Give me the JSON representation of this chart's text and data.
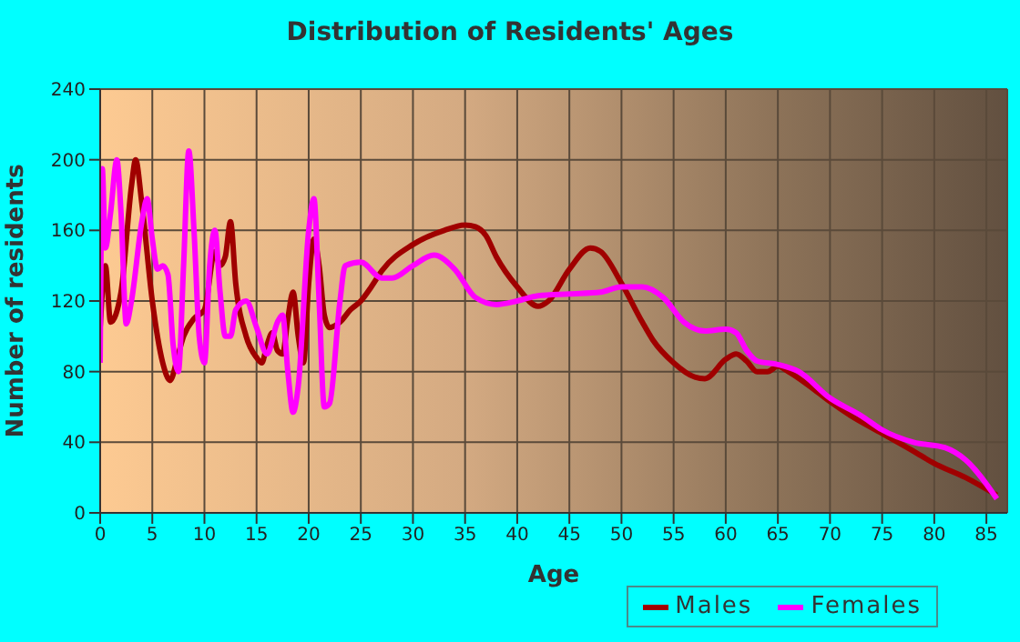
{
  "chart_data": {
    "type": "line",
    "title": "Distribution of Residents' Ages",
    "xlabel": "Age",
    "ylabel": "Number of residents",
    "xlim": [
      0,
      87
    ],
    "xticks": [
      0,
      5,
      10,
      15,
      20,
      25,
      30,
      35,
      40,
      45,
      50,
      55,
      60,
      65,
      70,
      75,
      80,
      85
    ],
    "ylim": [
      0,
      240
    ],
    "yticks": [
      0,
      40,
      80,
      120,
      160,
      200,
      240
    ],
    "grid": true,
    "legend": "bottom",
    "marker": "none",
    "line_style": "solid",
    "series": [
      {
        "name": "Males",
        "color": "#a00000",
        "x": [
          0,
          0.5,
          1,
          2,
          3,
          3.4,
          4,
          5,
          6,
          6.7,
          7.5,
          8,
          9,
          10,
          11,
          11.5,
          12,
          12.5,
          13,
          14,
          15,
          15.5,
          16,
          16.5,
          17,
          17.5,
          18,
          18.5,
          19,
          19.5,
          20,
          20.5,
          21,
          21.5,
          22,
          23,
          24,
          25,
          26,
          27,
          30,
          33,
          35,
          36,
          37,
          38,
          40,
          42,
          43,
          45,
          47,
          48,
          50,
          52,
          53,
          55,
          57,
          58,
          60,
          61,
          62,
          63,
          64,
          65,
          66,
          68,
          70,
          72,
          75,
          78,
          80,
          83,
          86
        ],
        "values": [
          105,
          140,
          108,
          125,
          185,
          200,
          175,
          120,
          85,
          75,
          90,
          100,
          110,
          115,
          148,
          140,
          145,
          165,
          130,
          100,
          88,
          85,
          95,
          102,
          92,
          90,
          110,
          125,
          100,
          85,
          130,
          155,
          140,
          112,
          105,
          108,
          115,
          120,
          128,
          137,
          152,
          160,
          163,
          162,
          157,
          145,
          128,
          117,
          120,
          138,
          150,
          148,
          130,
          108,
          98,
          85,
          77,
          76,
          87,
          90,
          86,
          80,
          80,
          83,
          80,
          72,
          63,
          55,
          45,
          35,
          28,
          20,
          10
        ]
      },
      {
        "name": "Females",
        "color": "#ff00ff",
        "x": [
          0,
          0.2,
          0.5,
          1,
          1.6,
          2,
          2.5,
          3,
          4,
          4.5,
          5,
          5.5,
          6,
          6.5,
          7,
          7.5,
          8,
          8.5,
          9,
          9.5,
          10,
          10.5,
          11,
          11.5,
          12,
          12.5,
          13,
          14,
          15,
          16,
          17,
          17.5,
          18,
          18.5,
          19,
          20,
          20.5,
          21,
          21.5,
          22,
          23,
          23.5,
          25,
          27,
          28,
          30,
          32,
          34,
          36,
          38,
          40,
          42,
          45,
          48,
          50,
          52,
          54,
          56,
          58,
          60,
          61,
          62,
          63,
          65,
          67,
          70,
          73,
          75,
          78,
          81,
          83,
          86
        ],
        "values": [
          85,
          195,
          150,
          170,
          200,
          170,
          107,
          120,
          165,
          178,
          155,
          138,
          140,
          135,
          95,
          80,
          140,
          205,
          160,
          100,
          85,
          140,
          160,
          125,
          100,
          100,
          115,
          120,
          105,
          90,
          108,
          112,
          80,
          57,
          72,
          160,
          178,
          120,
          60,
          62,
          120,
          140,
          142,
          133,
          133,
          140,
          146,
          138,
          122,
          118,
          120,
          123,
          124,
          125,
          128,
          128,
          122,
          108,
          103,
          104,
          102,
          92,
          86,
          84,
          80,
          65,
          55,
          47,
          40,
          37,
          30,
          8
        ]
      }
    ]
  }
}
